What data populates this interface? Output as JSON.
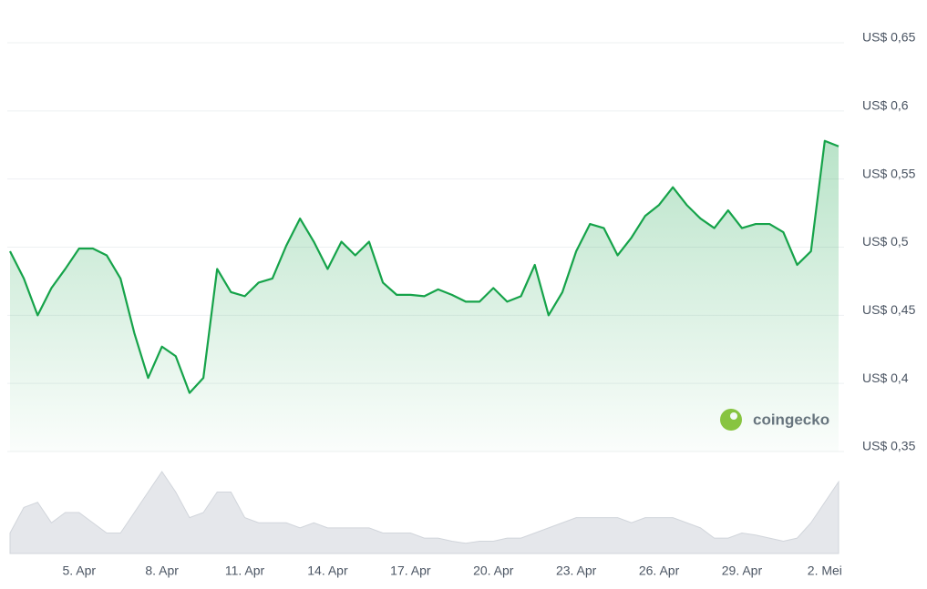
{
  "chart_data": {
    "type": "line",
    "categories": [
      null,
      null,
      null,
      null,
      null,
      "5. Apr",
      null,
      null,
      null,
      null,
      null,
      "8. Apr",
      null,
      null,
      null,
      null,
      null,
      "11. Apr",
      null,
      null,
      null,
      null,
      null,
      "14. Apr",
      null,
      null,
      null,
      null,
      null,
      "17. Apr",
      null,
      null,
      null,
      null,
      null,
      "20. Apr",
      null,
      null,
      null,
      null,
      null,
      "23. Apr",
      null,
      null,
      null,
      null,
      null,
      "26. Apr",
      null,
      null,
      null,
      null,
      null,
      "29. Apr",
      null,
      null,
      null,
      null,
      null,
      "2. Mei",
      null
    ],
    "series": [
      {
        "color": "#16a34a",
        "values": [
          0.497,
          0.477,
          0.45,
          0.47,
          0.484,
          0.499,
          0.499,
          0.494,
          0.477,
          0.437,
          0.404,
          0.427,
          0.42,
          0.393,
          0.404,
          0.484,
          0.467,
          0.464,
          0.474,
          0.477,
          0.501,
          0.521,
          0.504,
          0.484,
          0.504,
          0.494,
          0.504,
          0.474,
          0.465,
          0.465,
          0.464,
          0.469,
          0.465,
          0.46,
          0.46,
          0.47,
          0.46,
          0.464,
          0.487,
          0.45,
          0.467,
          0.497,
          0.517,
          0.514,
          0.494,
          0.507,
          0.523,
          0.531,
          0.544,
          0.531,
          0.521,
          0.514,
          0.527,
          0.514,
          0.517,
          0.517,
          0.511,
          0.487,
          0.497,
          0.578,
          0.574
        ]
      }
    ],
    "volume": [
      20,
      45,
      50,
      30,
      40,
      40,
      30,
      20,
      20,
      40,
      60,
      80,
      60,
      35,
      40,
      60,
      60,
      35,
      30,
      30,
      30,
      25,
      30,
      25,
      25,
      25,
      25,
      20,
      20,
      20,
      15,
      15,
      12,
      10,
      12,
      12,
      15,
      15,
      20,
      25,
      30,
      35,
      35,
      35,
      35,
      30,
      35,
      35,
      35,
      30,
      25,
      15,
      15,
      20,
      18,
      15,
      12,
      15,
      30,
      50,
      70
    ],
    "ylim": [
      0.35,
      0.65
    ],
    "yticks": [
      {
        "value": 0.35,
        "label": "US$ 0,35"
      },
      {
        "value": 0.4,
        "label": "US$ 0,4"
      },
      {
        "value": 0.45,
        "label": "US$ 0,45"
      },
      {
        "value": 0.5,
        "label": "US$ 0,5"
      },
      {
        "value": 0.55,
        "label": "US$ 0,55"
      },
      {
        "value": 0.6,
        "label": "US$ 0,6"
      },
      {
        "value": 0.65,
        "label": "US$ 0,65"
      }
    ],
    "grid": true,
    "watermark": "coingecko"
  }
}
